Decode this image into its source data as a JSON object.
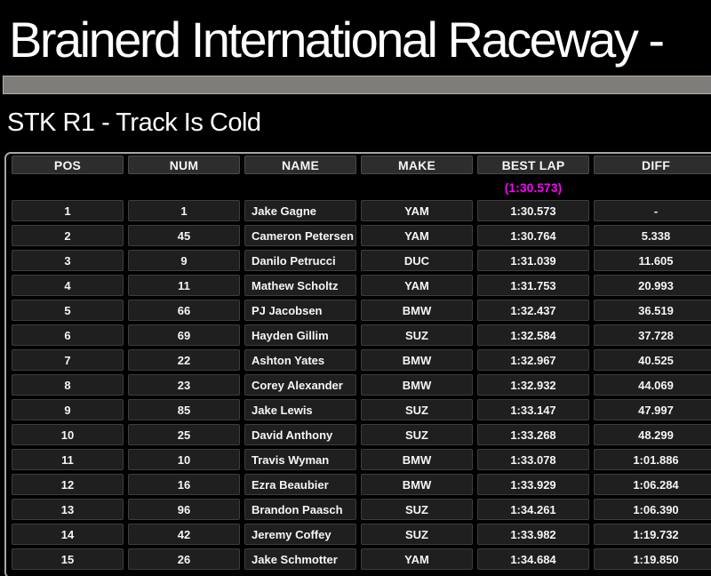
{
  "header": {
    "title": "Brainerd International Raceway -",
    "subtitle": "STK R1 - Track Is Cold"
  },
  "table": {
    "columns": [
      "POS",
      "NUM",
      "NAME",
      "MAKE",
      "BEST LAP",
      "DIFF"
    ],
    "fastest_lap": "(1:30.573)",
    "rows": [
      {
        "pos": "1",
        "num": "1",
        "name": "Jake Gagne",
        "make": "YAM",
        "best_lap": "1:30.573",
        "diff": "-"
      },
      {
        "pos": "2",
        "num": "45",
        "name": "Cameron Petersen",
        "make": "YAM",
        "best_lap": "1:30.764",
        "diff": "5.338"
      },
      {
        "pos": "3",
        "num": "9",
        "name": "Danilo Petrucci",
        "make": "DUC",
        "best_lap": "1:31.039",
        "diff": "11.605"
      },
      {
        "pos": "4",
        "num": "11",
        "name": "Mathew Scholtz",
        "make": "YAM",
        "best_lap": "1:31.753",
        "diff": "20.993"
      },
      {
        "pos": "5",
        "num": "66",
        "name": "PJ Jacobsen",
        "make": "BMW",
        "best_lap": "1:32.437",
        "diff": "36.519"
      },
      {
        "pos": "6",
        "num": "69",
        "name": "Hayden Gillim",
        "make": "SUZ",
        "best_lap": "1:32.584",
        "diff": "37.728"
      },
      {
        "pos": "7",
        "num": "22",
        "name": "Ashton Yates",
        "make": "BMW",
        "best_lap": "1:32.967",
        "diff": "40.525"
      },
      {
        "pos": "8",
        "num": "23",
        "name": "Corey Alexander",
        "make": "BMW",
        "best_lap": "1:32.932",
        "diff": "44.069"
      },
      {
        "pos": "9",
        "num": "85",
        "name": "Jake Lewis",
        "make": "SUZ",
        "best_lap": "1:33.147",
        "diff": "47.997"
      },
      {
        "pos": "10",
        "num": "25",
        "name": "David Anthony",
        "make": "SUZ",
        "best_lap": "1:33.268",
        "diff": "48.299"
      },
      {
        "pos": "11",
        "num": "10",
        "name": "Travis Wyman",
        "make": "BMW",
        "best_lap": "1:33.078",
        "diff": "1:01.886"
      },
      {
        "pos": "12",
        "num": "16",
        "name": "Ezra Beaubier",
        "make": "BMW",
        "best_lap": "1:33.929",
        "diff": "1:06.284"
      },
      {
        "pos": "13",
        "num": "96",
        "name": "Brandon Paasch",
        "make": "SUZ",
        "best_lap": "1:34.261",
        "diff": "1:06.390"
      },
      {
        "pos": "14",
        "num": "42",
        "name": "Jeremy Coffey",
        "make": "SUZ",
        "best_lap": "1:33.982",
        "diff": "1:19.732"
      },
      {
        "pos": "15",
        "num": "26",
        "name": "Jake Schmotter",
        "make": "YAM",
        "best_lap": "1:34.684",
        "diff": "1:19.850"
      }
    ]
  },
  "colors": {
    "background": "#000000",
    "row_bg": "#1f1f1f",
    "header_bg": "#2d2d2d",
    "table_border": "#a9a6a3",
    "divider_bar": "#7f7c79",
    "fastest_lap_accent": "#ff00ff",
    "text": "#f5f5f5"
  }
}
